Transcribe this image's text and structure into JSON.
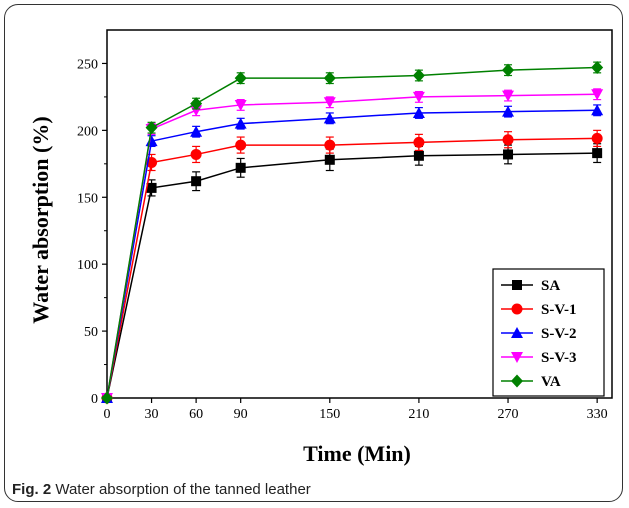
{
  "caption": {
    "label": "Fig. 2",
    "text": "Water absorption of the tanned leather"
  },
  "chart_data": {
    "type": "line",
    "xlabel": "Time (Min)",
    "ylabel": "Water absorption (%)",
    "x_ticks": [
      0,
      30,
      60,
      90,
      150,
      210,
      270,
      330
    ],
    "y_ticks": [
      0,
      50,
      100,
      150,
      200,
      250
    ],
    "xlim": [
      0,
      340
    ],
    "ylim": [
      0,
      275
    ],
    "legend_position": "bottom-right",
    "x": [
      0,
      30,
      60,
      90,
      150,
      210,
      270,
      330
    ],
    "series": [
      {
        "name": "SA",
        "color": "#000000",
        "marker": "square",
        "values": [
          0,
          157,
          162,
          172,
          178,
          181,
          182,
          183
        ],
        "errors": [
          0,
          6,
          7,
          7,
          8,
          7,
          7,
          7
        ]
      },
      {
        "name": "S-V-1",
        "color": "#ff0000",
        "marker": "circle",
        "values": [
          0,
          176,
          182,
          189,
          189,
          191,
          193,
          194
        ],
        "errors": [
          0,
          6,
          6,
          6,
          6,
          6,
          6,
          6
        ]
      },
      {
        "name": "S-V-2",
        "color": "#0000ff",
        "marker": "triangle-up",
        "values": [
          0,
          192,
          199,
          205,
          209,
          213,
          214,
          215
        ],
        "errors": [
          0,
          4,
          4,
          4,
          4,
          4,
          4,
          4
        ]
      },
      {
        "name": "S-V-3",
        "color": "#ff00ff",
        "marker": "triangle-down",
        "values": [
          0,
          201,
          215,
          219,
          221,
          225,
          226,
          227
        ],
        "errors": [
          0,
          4,
          4,
          4,
          4,
          4,
          4,
          4
        ]
      },
      {
        "name": "VA",
        "color": "#008000",
        "marker": "diamond",
        "values": [
          0,
          202,
          220,
          239,
          239,
          241,
          245,
          247
        ],
        "errors": [
          0,
          4,
          4,
          4,
          4,
          4,
          4,
          4
        ]
      }
    ]
  }
}
